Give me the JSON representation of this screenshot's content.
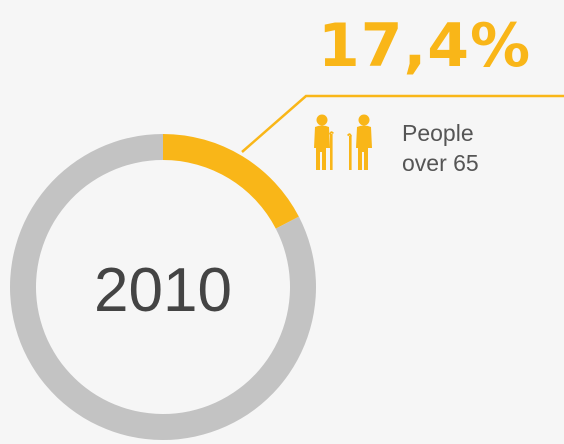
{
  "chart_data": {
    "type": "pie",
    "style": "donut",
    "center_label": "2010",
    "slices": [
      {
        "label_lines": [
          "People",
          "over 65"
        ],
        "value": 17.4,
        "value_text": "17,4%",
        "color": "#f9b618"
      },
      {
        "value": 82.6,
        "color": "#c3c3c3"
      }
    ],
    "callout_color": "#f9b618",
    "icon": "elderly-couple-icon"
  }
}
